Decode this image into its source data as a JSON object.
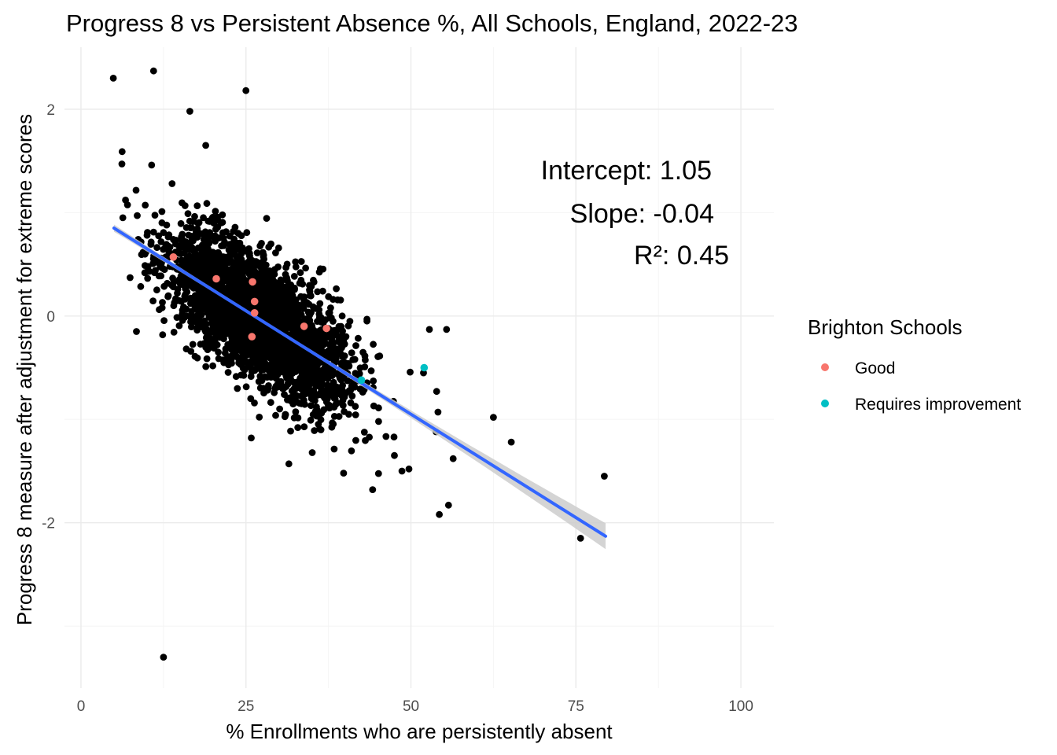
{
  "chart_data": {
    "type": "scatter",
    "title": "Progress 8 vs Persistent Absence %, All Schools, England, 2022-23",
    "xlabel": "% Enrollments who are persistently absent",
    "ylabel": "Progress 8 measure after adjustment for extreme scores",
    "xlim": [
      -2.5,
      105
    ],
    "ylim": [
      -3.6,
      2.6
    ],
    "x_ticks": [
      0,
      25,
      50,
      75,
      100
    ],
    "y_ticks": [
      -2,
      0,
      2
    ],
    "grid": true,
    "legend": {
      "title": "Brighton Schools",
      "position": "right",
      "entries": [
        {
          "label": "Good",
          "color": "#F8766D"
        },
        {
          "label": "Requires improvement",
          "color": "#00BFC4"
        }
      ]
    },
    "annotations": {
      "intercept": "Intercept: 1.05",
      "slope": "Slope: -0.04",
      "r2": "R²: 0.45"
    },
    "regression": {
      "intercept": 1.05,
      "slope": -0.04,
      "x_range": [
        5,
        79.5
      ],
      "color": "#3366FF",
      "band_color": "#cccccc"
    },
    "cluster": {
      "count": 3000,
      "center_x": 27,
      "center_y": 0.0,
      "color": "#000000"
    },
    "outliers": [
      [
        4.9,
        2.3
      ],
      [
        11,
        2.37
      ],
      [
        25,
        2.18
      ],
      [
        16.5,
        1.98
      ],
      [
        18.9,
        1.65
      ],
      [
        12.5,
        -3.3
      ],
      [
        75.7,
        -2.15
      ],
      [
        79.3,
        -1.55
      ],
      [
        54.3,
        -1.92
      ],
      [
        55.7,
        -1.83
      ],
      [
        62.5,
        -0.98
      ],
      [
        65.2,
        -1.22
      ],
      [
        51.9,
        -0.55
      ],
      [
        52.8,
        -0.13
      ],
      [
        55.4,
        -0.13
      ],
      [
        31.5,
        -1.43
      ],
      [
        44.2,
        -1.68
      ],
      [
        39.8,
        -1.52
      ],
      [
        56.4,
        -1.38
      ],
      [
        53.8,
        -1.12
      ],
      [
        54.1,
        -0.93
      ],
      [
        53.9,
        -0.73
      ],
      [
        6.2,
        1.47
      ],
      [
        10.7,
        1.46
      ],
      [
        12.3,
        0.08
      ],
      [
        8.4,
        -0.15
      ],
      [
        25.8,
        -1.18
      ],
      [
        49.7,
        -1.48
      ],
      [
        47.5,
        -1.35
      ],
      [
        45.1,
        -1.02
      ],
      [
        13.8,
        1.28
      ]
    ],
    "brighton_schools": [
      {
        "x": 14.0,
        "y": 0.57,
        "rating": "Good"
      },
      {
        "x": 20.5,
        "y": 0.36,
        "rating": "Good"
      },
      {
        "x": 26.0,
        "y": 0.33,
        "rating": "Good"
      },
      {
        "x": 26.3,
        "y": 0.14,
        "rating": "Good"
      },
      {
        "x": 26.3,
        "y": 0.03,
        "rating": "Good"
      },
      {
        "x": 25.9,
        "y": -0.2,
        "rating": "Good"
      },
      {
        "x": 33.8,
        "y": -0.1,
        "rating": "Good"
      },
      {
        "x": 37.2,
        "y": -0.12,
        "rating": "Good"
      },
      {
        "x": 52.0,
        "y": -0.5,
        "rating": "Requires improvement"
      },
      {
        "x": 42.5,
        "y": -0.62,
        "rating": "Requires improvement"
      }
    ]
  }
}
